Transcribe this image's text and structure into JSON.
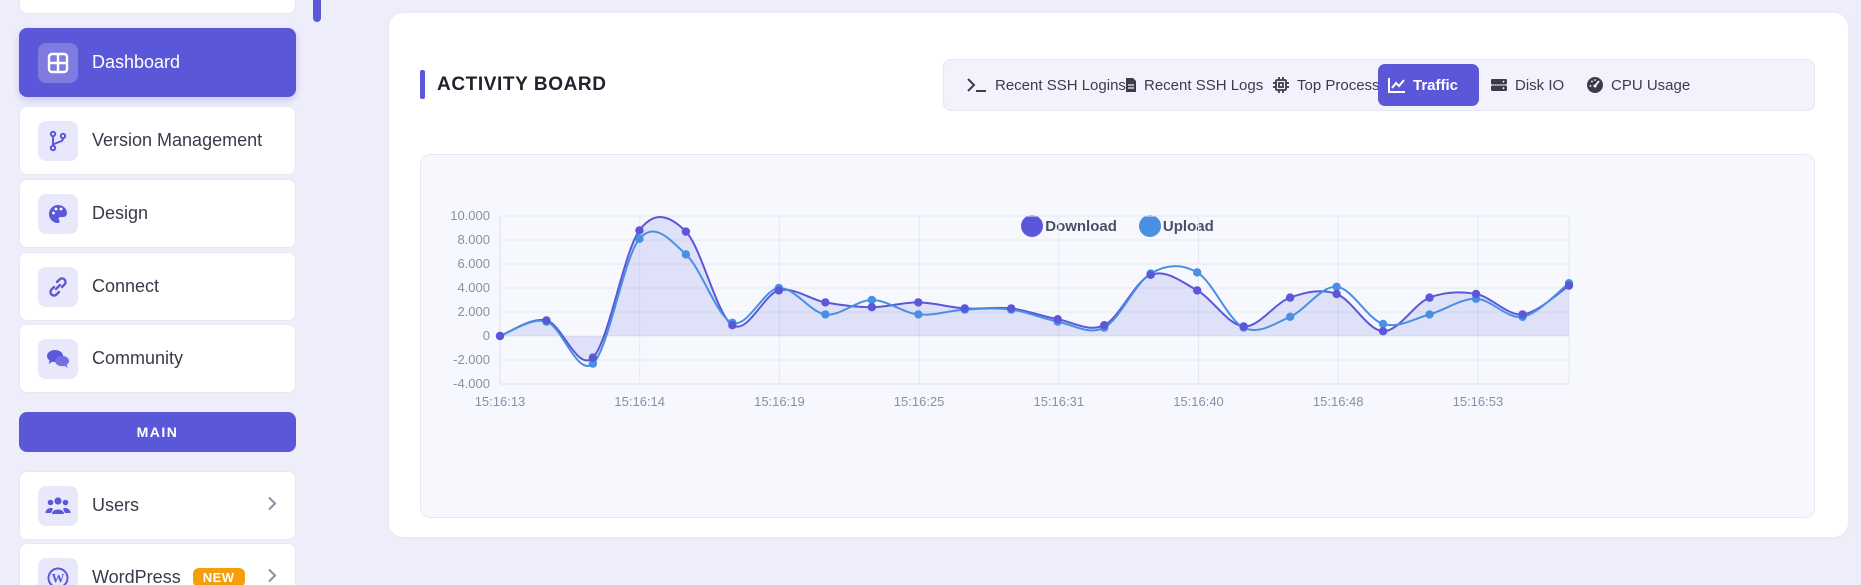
{
  "sidebar": {
    "items": [
      {
        "label": "Dashboard",
        "icon": "dashboard-grid-icon",
        "active": true
      },
      {
        "label": "Version Management",
        "icon": "git-branch-icon"
      },
      {
        "label": "Design",
        "icon": "palette-icon"
      },
      {
        "label": "Connect",
        "icon": "link-icon"
      },
      {
        "label": "Community",
        "icon": "chat-bubbles-icon"
      }
    ],
    "section_label": "MAIN",
    "main_items": [
      {
        "label": "Users",
        "icon": "users-icon",
        "chevron": "chevron-right-icon"
      },
      {
        "label": "WordPress",
        "icon": "wordpress-icon",
        "badge": "NEW",
        "chevron": "chevron-right-icon"
      }
    ]
  },
  "board": {
    "title": "ACTIVITY BOARD",
    "tabs": [
      {
        "label": "Recent SSH Logins",
        "icon": "terminal-icon"
      },
      {
        "label": "Recent SSH Logs",
        "icon": "file-icon"
      },
      {
        "label": "Top Process",
        "icon": "cpu-chip-icon"
      },
      {
        "label": "Traffic",
        "icon": "line-chart-icon",
        "active": true
      },
      {
        "label": "Disk IO",
        "icon": "hard-drive-icon"
      },
      {
        "label": "CPU Usage",
        "icon": "gauge-icon"
      }
    ]
  },
  "colors": {
    "accent": "#5b57d9",
    "download": "#5b57d9",
    "upload": "#4a90e2"
  },
  "chart_data": {
    "type": "line",
    "ylim": [
      -4000,
      10000
    ],
    "yticks": [
      "10.000",
      "8.000",
      "6.000",
      "4.000",
      "2.000",
      "0",
      "-2.000",
      "-4.000"
    ],
    "ytick_values": [
      10000,
      8000,
      6000,
      4000,
      2000,
      0,
      -2000,
      -4000
    ],
    "x_tick_labels": [
      "15:16:13",
      "15:16:14",
      "15:16:19",
      "15:16:25",
      "15:16:31",
      "15:16:40",
      "15:16:48",
      "15:16:53"
    ],
    "series": [
      {
        "name": "Download",
        "values": [
          0,
          1300,
          -1800,
          8800,
          8700,
          900,
          3800,
          2800,
          2400,
          2800,
          2300,
          2300,
          1400,
          900,
          5100,
          3800,
          800,
          3200,
          3500,
          400,
          3200,
          3500,
          1800,
          4200
        ]
      },
      {
        "name": "Upload",
        "values": [
          0,
          1200,
          -2300,
          8100,
          6800,
          1100,
          4000,
          1800,
          3000,
          1800,
          2200,
          2200,
          1200,
          700,
          5200,
          5300,
          700,
          1600,
          4100,
          1000,
          1800,
          3100,
          1600,
          4400
        ]
      }
    ],
    "grid": true,
    "legend": "top-center",
    "area_fill": "Download"
  }
}
